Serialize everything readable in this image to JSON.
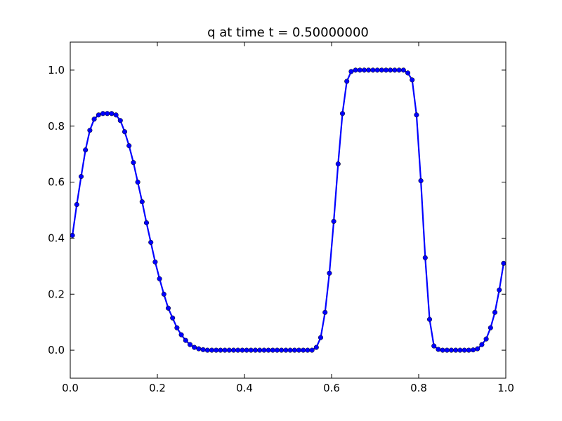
{
  "chart_data": {
    "type": "line",
    "title": "q at time t =     0.50000000",
    "x": [
      0.005,
      0.015,
      0.025,
      0.035,
      0.045,
      0.055,
      0.065,
      0.075,
      0.085,
      0.095,
      0.105,
      0.115,
      0.125,
      0.135,
      0.145,
      0.155,
      0.165,
      0.175,
      0.185,
      0.195,
      0.205,
      0.215,
      0.225,
      0.235,
      0.245,
      0.255,
      0.265,
      0.275,
      0.285,
      0.295,
      0.305,
      0.315,
      0.325,
      0.335,
      0.345,
      0.355,
      0.365,
      0.375,
      0.385,
      0.395,
      0.405,
      0.415,
      0.425,
      0.435,
      0.445,
      0.455,
      0.465,
      0.475,
      0.485,
      0.495,
      0.505,
      0.515,
      0.525,
      0.535,
      0.545,
      0.555,
      0.565,
      0.575,
      0.585,
      0.595,
      0.605,
      0.615,
      0.625,
      0.635,
      0.645,
      0.655,
      0.665,
      0.675,
      0.685,
      0.695,
      0.705,
      0.715,
      0.725,
      0.735,
      0.745,
      0.755,
      0.765,
      0.775,
      0.785,
      0.795,
      0.805,
      0.815,
      0.825,
      0.835,
      0.845,
      0.855,
      0.865,
      0.875,
      0.885,
      0.895,
      0.905,
      0.915,
      0.925,
      0.935,
      0.945,
      0.955,
      0.965,
      0.975,
      0.985,
      0.995
    ],
    "series": [
      {
        "color": "#0000ff",
        "values": [
          0.41,
          0.52,
          0.62,
          0.715,
          0.785,
          0.825,
          0.84,
          0.845,
          0.845,
          0.845,
          0.84,
          0.82,
          0.78,
          0.73,
          0.67,
          0.6,
          0.53,
          0.455,
          0.385,
          0.315,
          0.255,
          0.2,
          0.15,
          0.115,
          0.08,
          0.055,
          0.035,
          0.02,
          0.01,
          0.005,
          0.002,
          0,
          0,
          0,
          0,
          0,
          0,
          0,
          0,
          0,
          0,
          0,
          0,
          0,
          0,
          0,
          0,
          0,
          0,
          0,
          0,
          0,
          0,
          0,
          0,
          0,
          0.01,
          0.045,
          0.135,
          0.275,
          0.46,
          0.665,
          0.845,
          0.96,
          0.995,
          1,
          1,
          1,
          1,
          1,
          1,
          1,
          1,
          1,
          1,
          1,
          1,
          0.99,
          0.965,
          0.84,
          0.605,
          0.33,
          0.11,
          0.015,
          0.003,
          0,
          0,
          0,
          0,
          0,
          0,
          0,
          0.001,
          0.005,
          0.02,
          0.04,
          0.08,
          0.135,
          0.215,
          0.31
        ]
      }
    ],
    "xlim": [
      0,
      1
    ],
    "ylim": [
      -0.1,
      1.1
    ],
    "xticks": [
      {
        "value": 0,
        "label": "0.0"
      },
      {
        "value": 0.2,
        "label": "0.2"
      },
      {
        "value": 0.4,
        "label": "0.4"
      },
      {
        "value": 0.6,
        "label": "0.6"
      },
      {
        "value": 0.8,
        "label": "0.8"
      },
      {
        "value": 1,
        "label": "1.0"
      }
    ],
    "yticks": [
      {
        "value": 0,
        "label": "0.0"
      },
      {
        "value": 0.2,
        "label": "0.2"
      },
      {
        "value": 0.4,
        "label": "0.4"
      },
      {
        "value": 0.6,
        "label": "0.6"
      },
      {
        "value": 0.8,
        "label": "0.8"
      },
      {
        "value": 1,
        "label": "1.0"
      }
    ]
  }
}
